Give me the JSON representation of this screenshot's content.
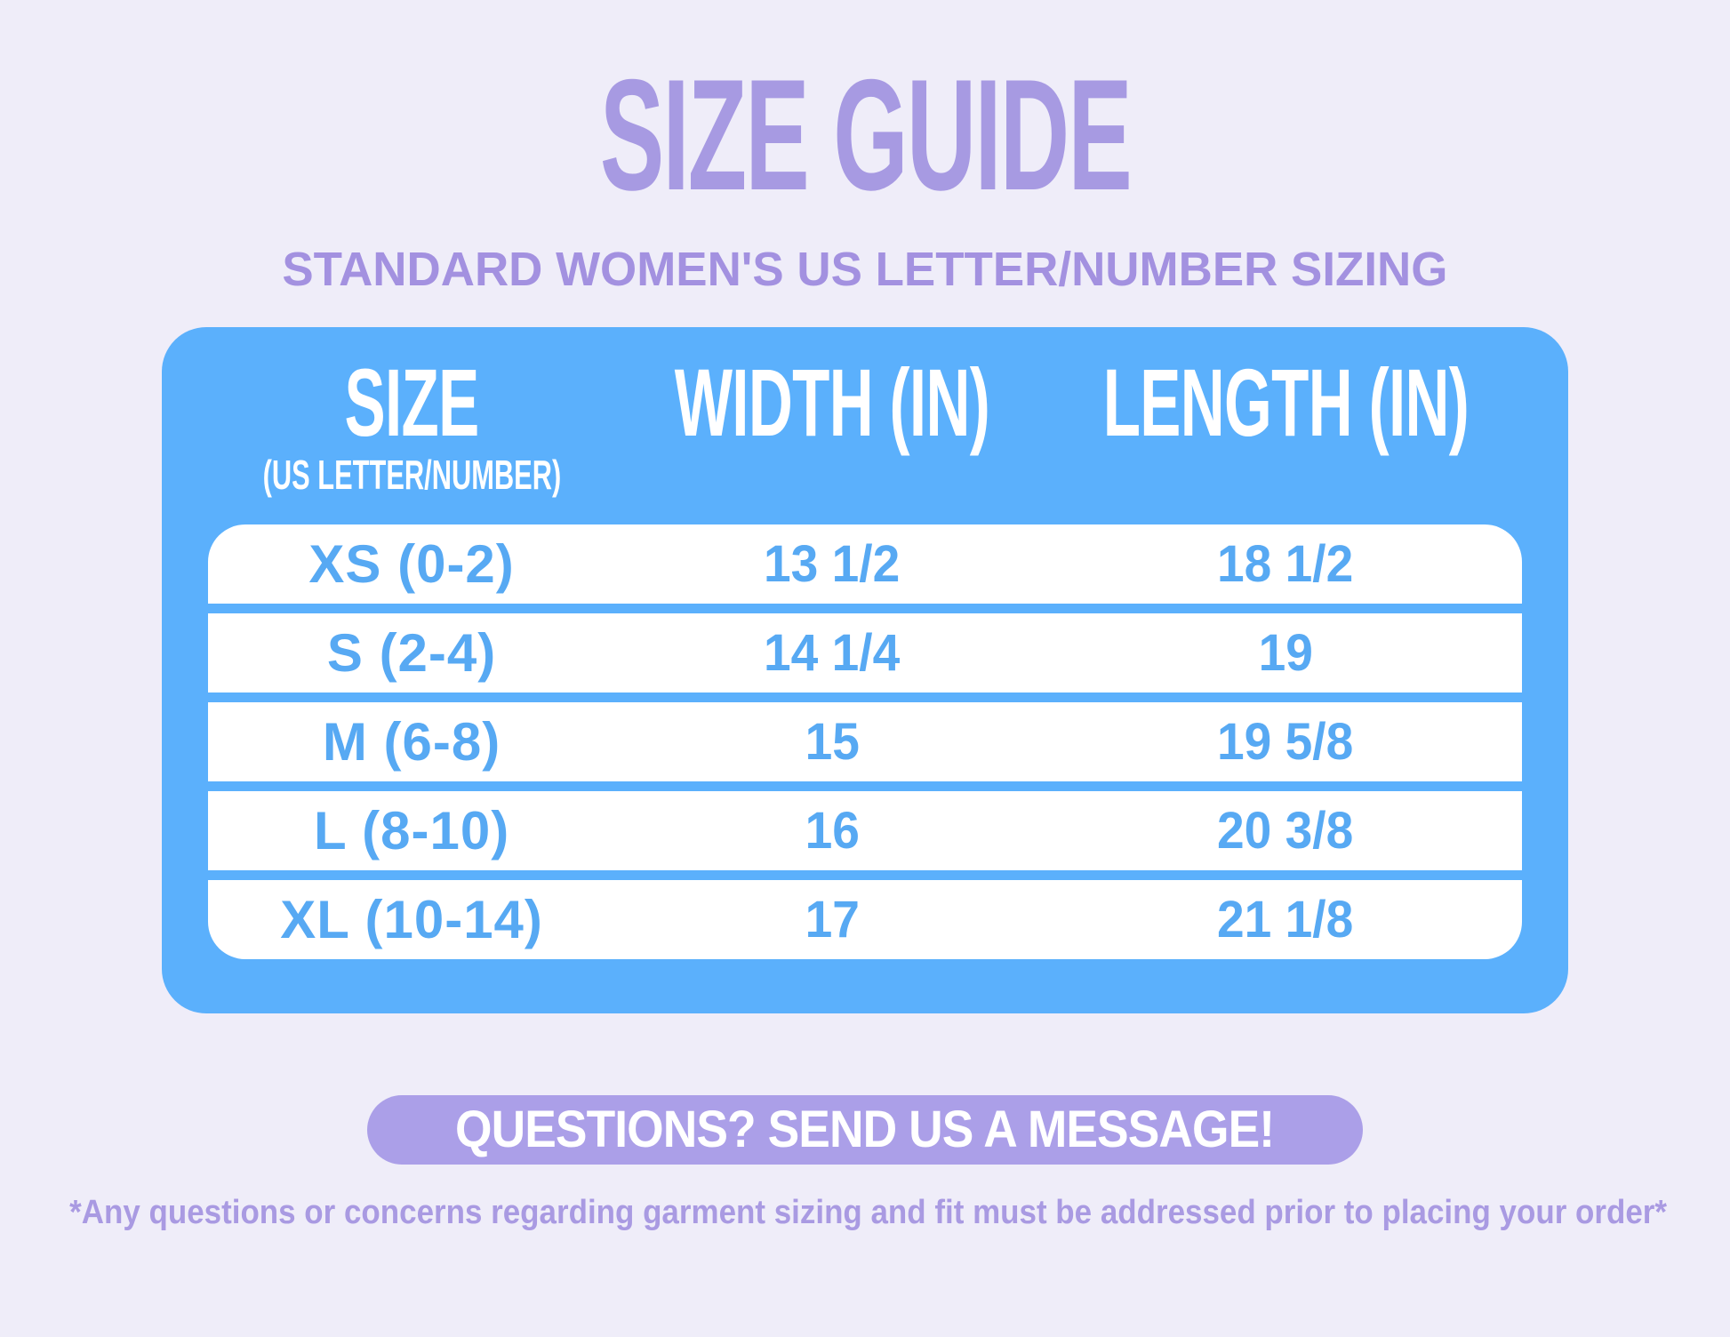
{
  "header": {
    "title": "SIZE GUIDE",
    "subtitle": "STANDARD WOMEN'S US LETTER/NUMBER SIZING"
  },
  "table": {
    "columns": [
      {
        "label": "SIZE",
        "sublabel": "(US LETTER/NUMBER)"
      },
      {
        "label": "WIDTH (IN)",
        "sublabel": ""
      },
      {
        "label": "LENGTH (IN)",
        "sublabel": ""
      }
    ],
    "rows": [
      {
        "size": "XS (0-2)",
        "width": "13 1/2",
        "length": "18 1/2"
      },
      {
        "size": "S (2-4)",
        "width": "14 1/4",
        "length": "19"
      },
      {
        "size": "M (6-8)",
        "width": "15",
        "length": "19 5/8"
      },
      {
        "size": "L (8-10)",
        "width": "16",
        "length": "20 3/8"
      },
      {
        "size": "XL (10-14)",
        "width": "17",
        "length": "21 1/8"
      }
    ]
  },
  "cta": {
    "label": "QUESTIONS? SEND US A MESSAGE!"
  },
  "footnote": "*Any questions or concerns regarding garment sizing and fit must be addressed prior to placing your order*",
  "colors": {
    "background": "#efedf9",
    "panel_blue": "#5bb0fc",
    "row_text_blue": "#57a9f3",
    "accent_purple": "#a79ae2",
    "pill_purple": "#ab9fe8",
    "row_white": "#ffffff"
  }
}
